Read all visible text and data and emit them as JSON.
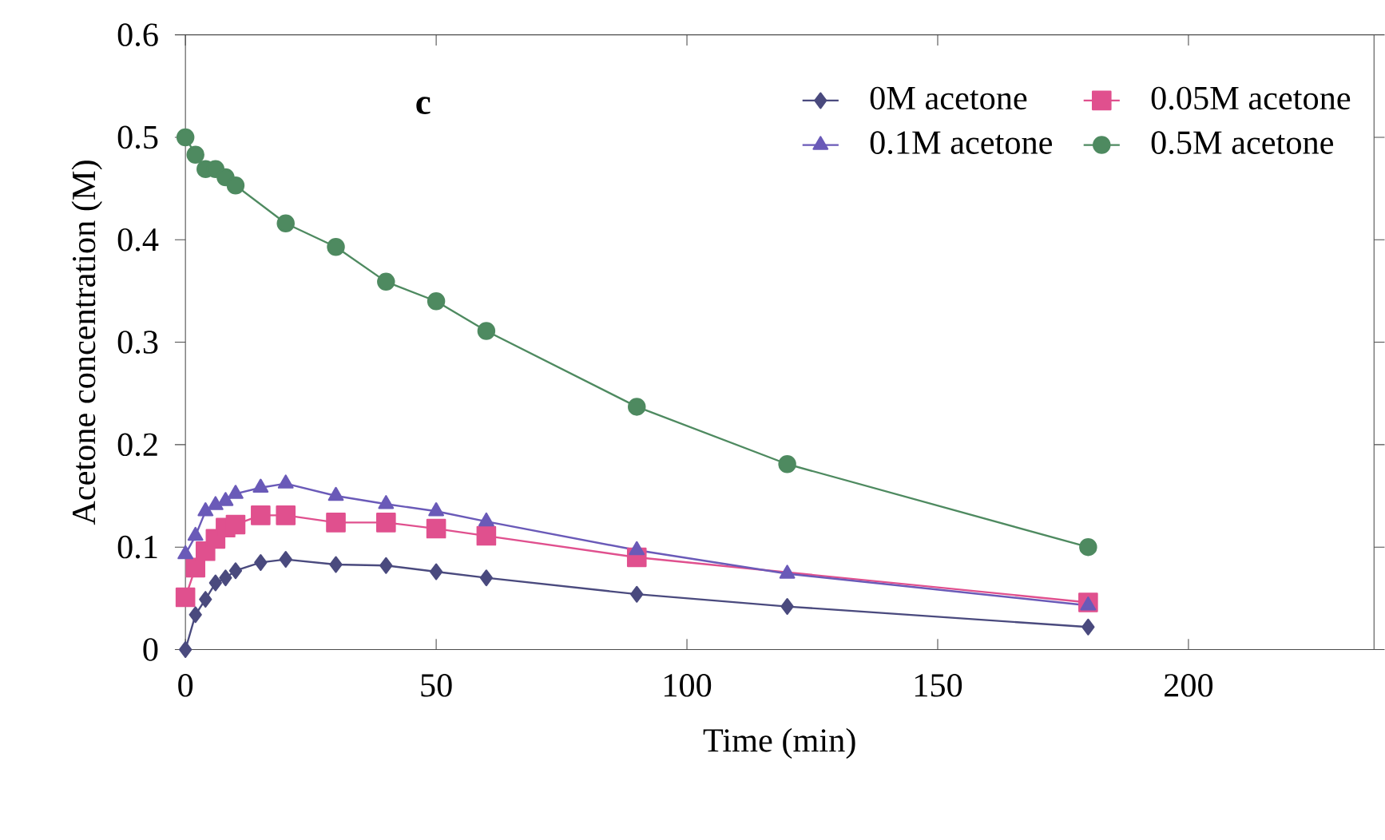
{
  "chart_data": {
    "type": "line",
    "xlabel": "Time (min)",
    "ylabel": "Acetone concentration (M)",
    "annotations": [
      "c"
    ],
    "xlim": [
      0,
      237
    ],
    "xticks": [
      0,
      50,
      100,
      150,
      200
    ],
    "ylim": [
      0,
      0.6
    ],
    "yticks": [
      0,
      0.1,
      0.2,
      0.3,
      0.4,
      0.5,
      0.6
    ],
    "legend": "top right",
    "grid": false,
    "line_style": "solid",
    "x": [
      0,
      2,
      4,
      6,
      8,
      10,
      15,
      20,
      30,
      40,
      50,
      60,
      90,
      120,
      180
    ],
    "series": [
      {
        "name": "0M acetone",
        "color": "#4a4a7e",
        "marker": "diamond",
        "values": [
          0,
          0.034,
          0.049,
          0.065,
          0.07,
          0.077,
          0.085,
          0.088,
          0.083,
          0.082,
          0.076,
          0.07,
          0.054,
          0.042,
          0.022
        ]
      },
      {
        "name": "0.05M acetone",
        "color": "#e0508e",
        "marker": "square",
        "values": [
          0.051,
          0.08,
          0.096,
          0.108,
          0.119,
          0.122,
          0.131,
          0.131,
          0.124,
          0.124,
          0.118,
          0.111,
          0.09,
          null,
          0.046
        ]
      },
      {
        "name": "0.1M acetone",
        "color": "#6a5ab8",
        "marker": "triangle",
        "values": [
          0.093,
          0.111,
          0.135,
          0.141,
          0.145,
          0.152,
          0.158,
          0.162,
          0.15,
          0.142,
          0.135,
          0.125,
          0.097,
          0.074,
          0.043
        ]
      },
      {
        "name": "0.5M acetone",
        "color": "#4e8a60",
        "marker": "circle",
        "values": [
          0.5,
          0.483,
          0.469,
          0.469,
          0.461,
          0.453,
          null,
          0.416,
          0.393,
          0.359,
          0.34,
          0.311,
          0.237,
          0.181,
          0.1
        ]
      }
    ]
  }
}
